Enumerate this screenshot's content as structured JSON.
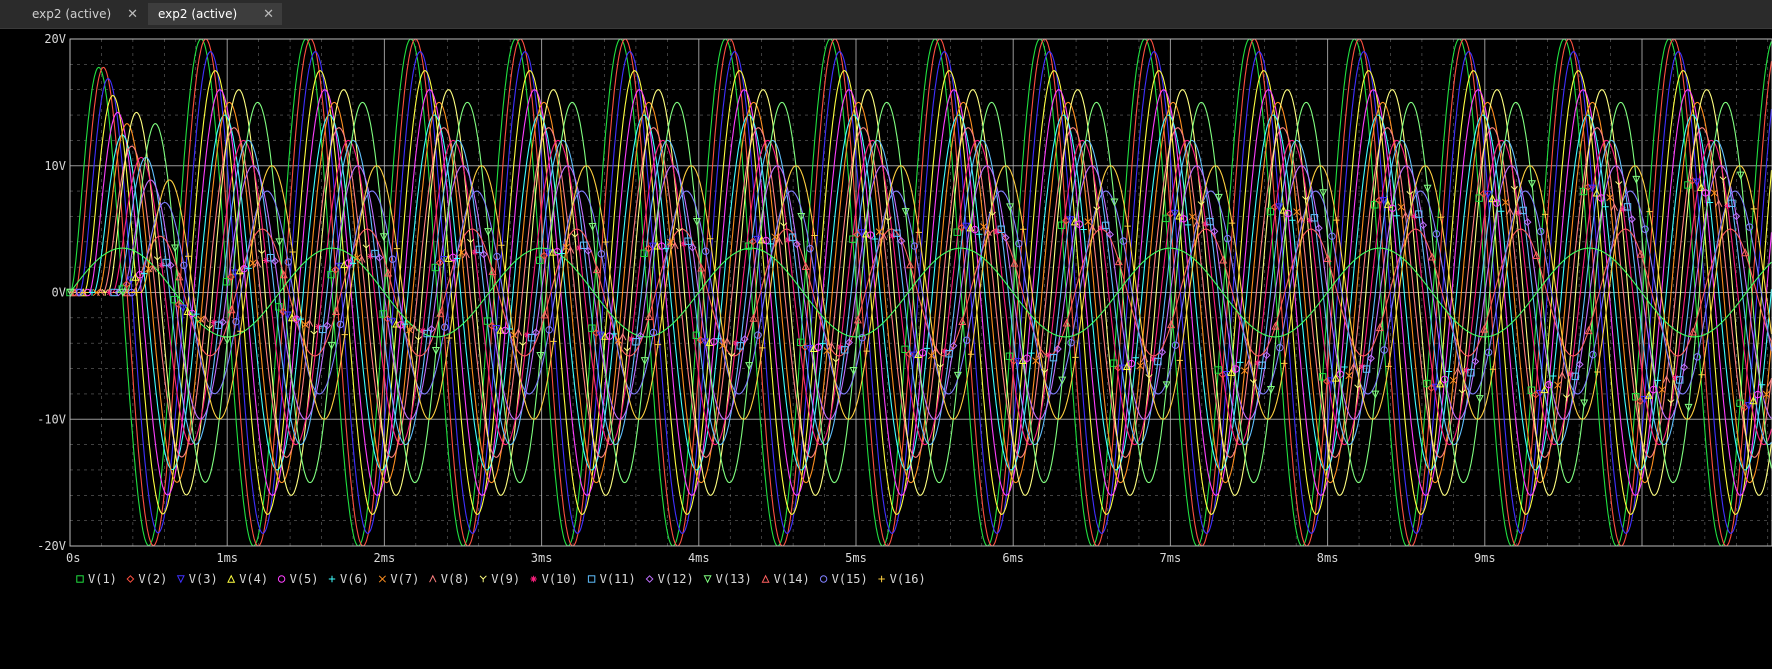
{
  "tabs": [
    {
      "label": "exp2 (active)",
      "close_icon": "close-icon",
      "active": false
    },
    {
      "label": "exp2 (active)",
      "close_icon": "close-icon",
      "active": true
    }
  ],
  "colors": {
    "background": "#000000",
    "grid": "#bdbdbd",
    "axis_text": "#d8d8d8"
  },
  "chart_data": {
    "type": "line",
    "xlabel": "",
    "ylabel": "",
    "xlim": [
      0,
      10
    ],
    "ylim": [
      -20,
      20
    ],
    "grid": true,
    "legend": "bottom",
    "x_ticks": [
      "0s",
      "1ms",
      "2ms",
      "3ms",
      "4ms",
      "5ms",
      "6ms",
      "7ms",
      "8ms",
      "9ms"
    ],
    "y_ticks": [
      "20V",
      "10V",
      "0V",
      "-10V",
      "-20V"
    ],
    "y_tick_values": [
      20,
      10,
      0,
      -10,
      -20
    ],
    "x_tick_values": [
      0,
      1,
      2,
      3,
      4,
      5,
      6,
      7,
      8,
      9
    ],
    "series": [
      {
        "name": "V(1)",
        "color": "#20e040",
        "marker": "square",
        "amplitude": 20,
        "onset_ms": 0.0,
        "period_ms": 0.667,
        "phase_deg": 0
      },
      {
        "name": "V(2)",
        "color": "#ff5040",
        "marker": "diamond",
        "amplitude": 20,
        "onset_ms": 0.03,
        "period_ms": 0.667,
        "phase_deg": 20
      },
      {
        "name": "V(3)",
        "color": "#4030ff",
        "marker": "triangle-down",
        "amplitude": 19,
        "onset_ms": 0.06,
        "period_ms": 0.667,
        "phase_deg": 40
      },
      {
        "name": "V(4)",
        "color": "#ffff40",
        "marker": "triangle-up",
        "amplitude": 17.5,
        "onset_ms": 0.09,
        "period_ms": 0.667,
        "phase_deg": 60
      },
      {
        "name": "V(5)",
        "color": "#ff40ff",
        "marker": "circle",
        "amplitude": 16,
        "onset_ms": 0.12,
        "period_ms": 0.667,
        "phase_deg": 80
      },
      {
        "name": "V(6)",
        "color": "#40ffff",
        "marker": "plus",
        "amplitude": 14,
        "onset_ms": 0.15,
        "period_ms": 0.667,
        "phase_deg": 100
      },
      {
        "name": "V(7)",
        "color": "#ff9020",
        "marker": "cross",
        "amplitude": 15,
        "onset_ms": 0.18,
        "period_ms": 0.667,
        "phase_deg": 120
      },
      {
        "name": "V(8)",
        "color": "#ff8080",
        "marker": "lambda",
        "amplitude": 13,
        "onset_ms": 0.21,
        "period_ms": 0.667,
        "phase_deg": 140
      },
      {
        "name": "V(9)",
        "color": "#ffff80",
        "marker": "y",
        "amplitude": 16,
        "onset_ms": 0.24,
        "period_ms": 0.667,
        "phase_deg": 160
      },
      {
        "name": "V(10)",
        "color": "#ff2080",
        "marker": "asterisk",
        "amplitude": 12,
        "onset_ms": 0.27,
        "period_ms": 0.667,
        "phase_deg": 180
      },
      {
        "name": "V(11)",
        "color": "#60c0ff",
        "marker": "square",
        "amplitude": 12,
        "onset_ms": 0.3,
        "period_ms": 0.667,
        "phase_deg": 200
      },
      {
        "name": "V(12)",
        "color": "#c070ff",
        "marker": "diamond",
        "amplitude": 10,
        "onset_ms": 0.33,
        "period_ms": 0.667,
        "phase_deg": 220
      },
      {
        "name": "V(13)",
        "color": "#80ff80",
        "marker": "triangle-down",
        "amplitude": 15,
        "onset_ms": 0.36,
        "period_ms": 0.667,
        "phase_deg": 240
      },
      {
        "name": "V(14)",
        "color": "#ff6060",
        "marker": "triangle-up",
        "amplitude": 5,
        "onset_ms": 0.39,
        "period_ms": 0.667,
        "phase_deg": 260
      },
      {
        "name": "V(15)",
        "color": "#8080ff",
        "marker": "circle",
        "amplitude": 8,
        "onset_ms": 0.42,
        "period_ms": 0.667,
        "phase_deg": 280
      },
      {
        "name": "V(16)",
        "color": "#ffd040",
        "marker": "plus",
        "amplitude": 10,
        "onset_ms": 0.45,
        "period_ms": 0.667,
        "phase_deg": 300
      },
      {
        "name": "",
        "color": "#40ff60",
        "marker": "none",
        "amplitude": 3.5,
        "onset_ms": 0.0,
        "period_ms": 1.333,
        "phase_deg": 90
      }
    ]
  }
}
